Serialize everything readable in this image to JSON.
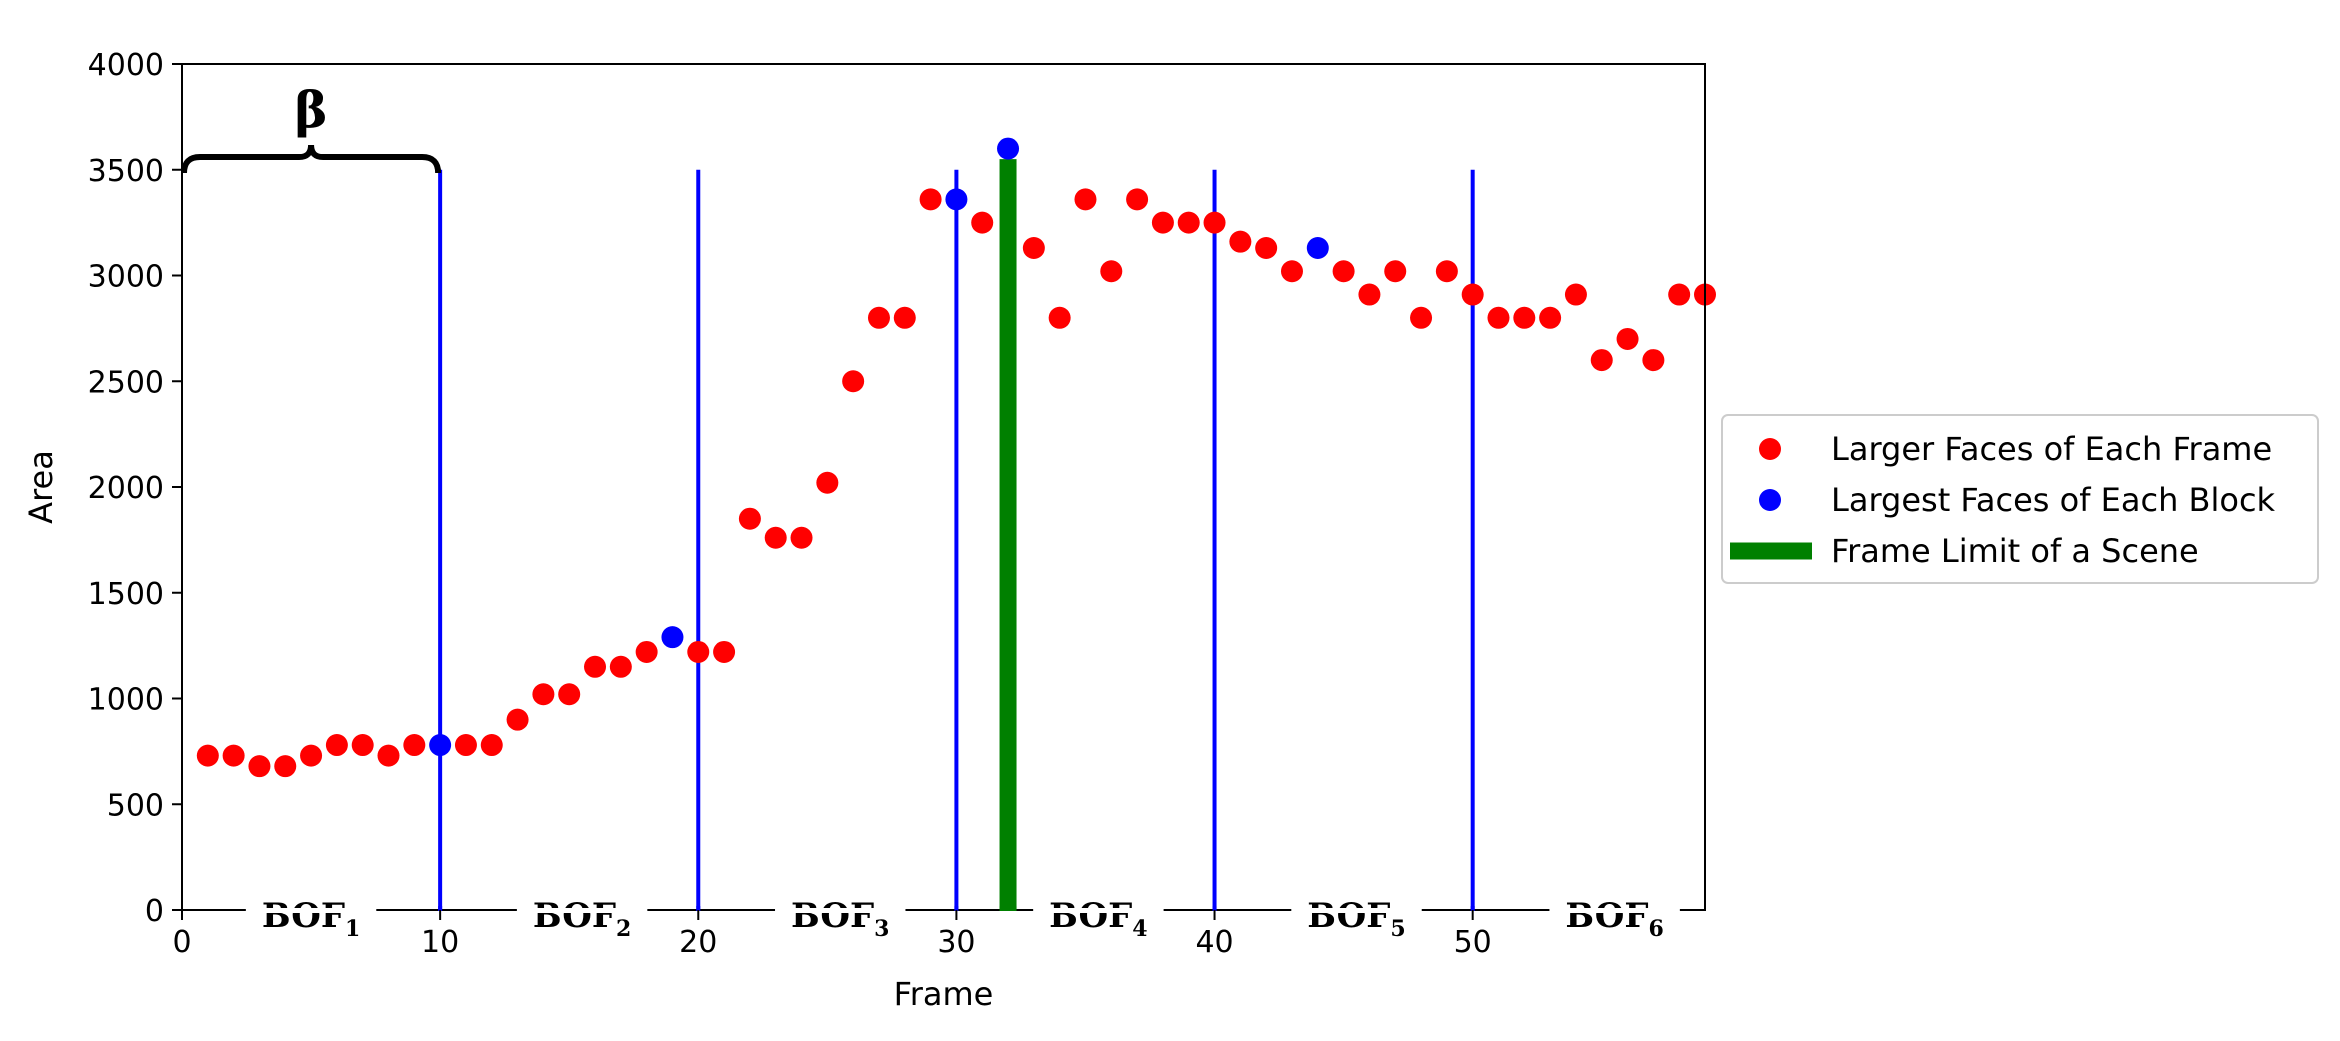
{
  "chart_data": {
    "type": "scatter",
    "xlabel": "Frame",
    "ylabel": "Area",
    "xlim": [
      0,
      59
    ],
    "ylim": [
      0,
      4000
    ],
    "xticks": [
      0,
      10,
      20,
      30,
      40,
      50
    ],
    "yticks": [
      0,
      500,
      1000,
      1500,
      2000,
      2500,
      3000,
      3500,
      4000
    ],
    "grid": false,
    "legend_position": "right",
    "series": [
      {
        "name": "Larger Faces of Each Frame",
        "color": "#ff0000",
        "points": [
          [
            1,
            730
          ],
          [
            2,
            730
          ],
          [
            3,
            680
          ],
          [
            4,
            680
          ],
          [
            5,
            730
          ],
          [
            6,
            780
          ],
          [
            7,
            780
          ],
          [
            8,
            730
          ],
          [
            9,
            780
          ],
          [
            11,
            780
          ],
          [
            12,
            780
          ],
          [
            13,
            900
          ],
          [
            14,
            1020
          ],
          [
            15,
            1020
          ],
          [
            16,
            1150
          ],
          [
            17,
            1150
          ],
          [
            18,
            1220
          ],
          [
            20,
            1220
          ],
          [
            21,
            1220
          ],
          [
            22,
            1850
          ],
          [
            23,
            1760
          ],
          [
            24,
            1760
          ],
          [
            25,
            2020
          ],
          [
            26,
            2500
          ],
          [
            27,
            2800
          ],
          [
            28,
            2800
          ],
          [
            29,
            3360
          ],
          [
            31,
            3250
          ],
          [
            33,
            3130
          ],
          [
            34,
            2800
          ],
          [
            35,
            3360
          ],
          [
            36,
            3020
          ],
          [
            37,
            3360
          ],
          [
            38,
            3250
          ],
          [
            39,
            3250
          ],
          [
            40,
            3250
          ],
          [
            41,
            3160
          ],
          [
            42,
            3130
          ],
          [
            43,
            3020
          ],
          [
            45,
            3020
          ],
          [
            46,
            2910
          ],
          [
            47,
            3020
          ],
          [
            48,
            2800
          ],
          [
            49,
            3020
          ],
          [
            50,
            2910
          ],
          [
            51,
            2800
          ],
          [
            52,
            2800
          ],
          [
            53,
            2800
          ],
          [
            54,
            2910
          ],
          [
            55,
            2600
          ],
          [
            56,
            2700
          ],
          [
            57,
            2600
          ],
          [
            58,
            2910
          ],
          [
            59,
            2910
          ]
        ]
      },
      {
        "name": "Largest Faces of Each Block",
        "color": "#0000ff",
        "points": [
          [
            10,
            780
          ],
          [
            19,
            1290
          ],
          [
            30,
            3360
          ],
          [
            32,
            3600
          ],
          [
            44,
            3130
          ]
        ]
      }
    ],
    "block_boundaries": {
      "color": "#0000ff",
      "frames": [
        10,
        20,
        30,
        40,
        50
      ],
      "top": 3500
    },
    "scene_limit": {
      "name": "Frame Limit of a Scene",
      "color": "#008000",
      "frame": 32,
      "top": 3550
    },
    "blocks": [
      {
        "label": "BOF",
        "sub": "1",
        "center": 5
      },
      {
        "label": "BOF",
        "sub": "2",
        "center": 15.5
      },
      {
        "label": "BOF",
        "sub": "3",
        "center": 25.5
      },
      {
        "label": "BOF",
        "sub": "4",
        "center": 35.5
      },
      {
        "label": "BOF",
        "sub": "5",
        "center": 45.5
      },
      {
        "label": "BOF",
        "sub": "6",
        "center": 55.5
      }
    ],
    "annotation": {
      "label": "β",
      "from": 0,
      "to": 10,
      "y": 3560
    }
  }
}
